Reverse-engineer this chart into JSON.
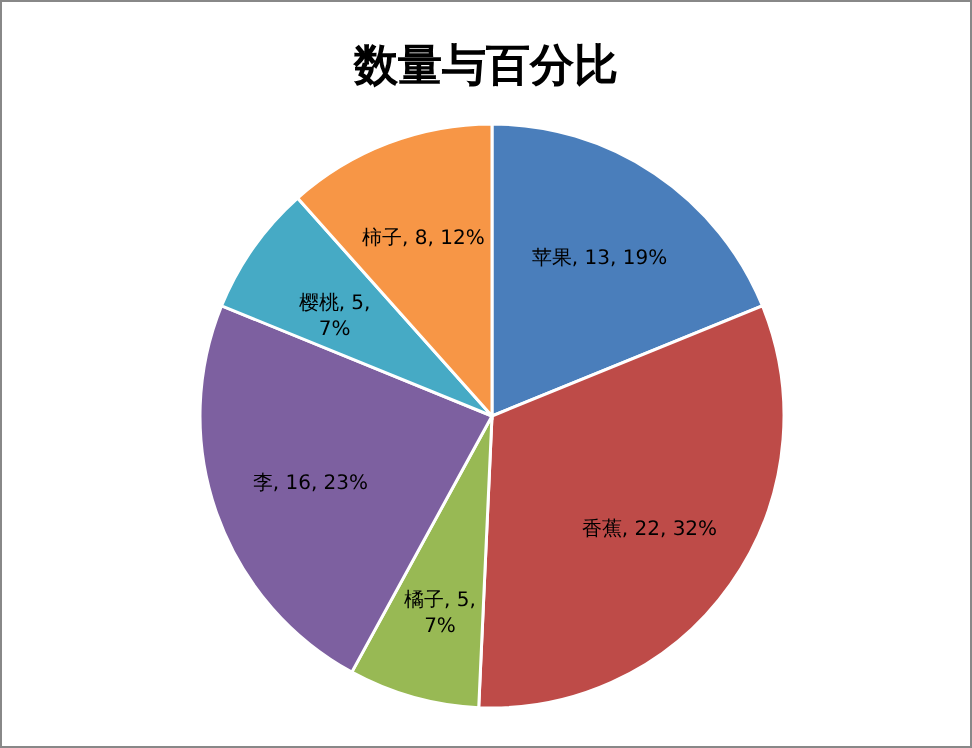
{
  "chart_data": {
    "type": "pie",
    "title": "数量与百分比",
    "categories": [
      "苹果",
      "香蕉",
      "橘子",
      "李",
      "樱桃",
      "柿子"
    ],
    "values": [
      13,
      22,
      5,
      16,
      5,
      8
    ],
    "value_labels": [
      "13, 19%",
      "22, 32%",
      "5, 7%",
      "16, 23%",
      "5, 7%",
      "8, 12%"
    ],
    "colors": [
      "#4a7ebb",
      "#be4b48",
      "#98b954",
      "#7d60a0",
      "#46aac5",
      "#f79646"
    ]
  }
}
